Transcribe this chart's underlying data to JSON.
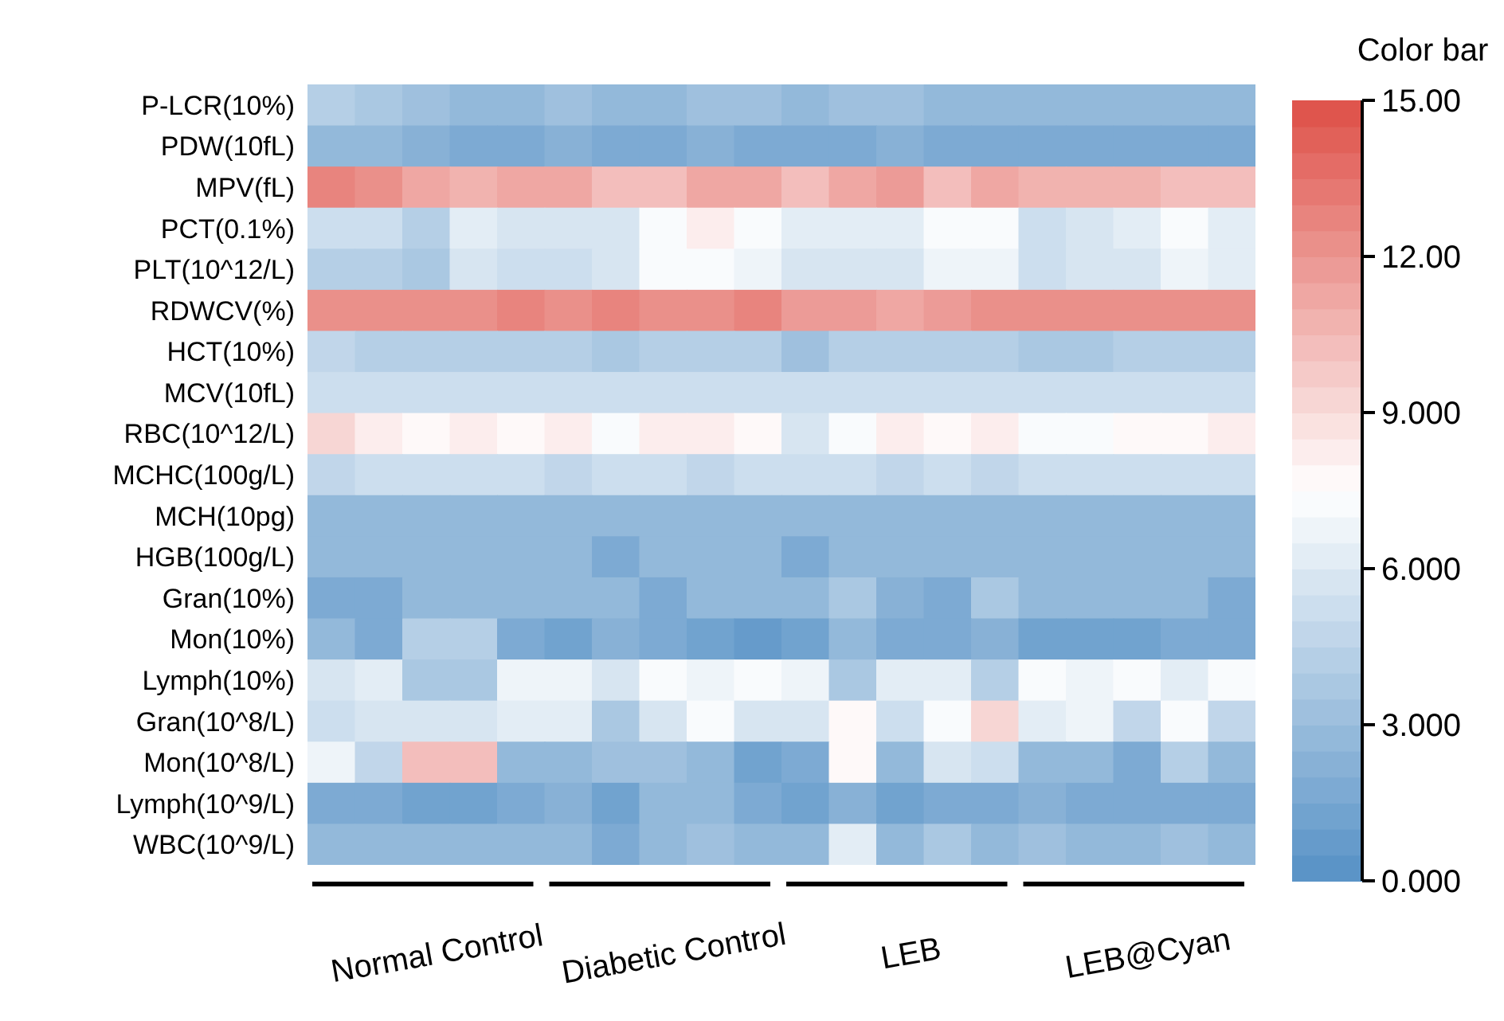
{
  "chart_data": {
    "type": "heatmap",
    "categories": [
      null,
      null,
      null,
      null,
      null,
      null,
      null,
      null,
      null,
      null,
      null,
      null,
      null,
      null,
      null,
      null,
      null,
      null,
      null,
      null
    ],
    "y_categories": [
      "P-LCR(10%)",
      "PDW(10fL)",
      "MPV(fL)",
      "PCT(0.1%)",
      "PLT(10^12/L)",
      "RDWCV(%)",
      "HCT(10%)",
      "MCV(10fL)",
      "RBC(10^12/L)",
      "MCHC(100g/L)",
      "MCH(10pg)",
      "HGB(100g/L)",
      "Gran(10%)",
      "Mon(10%)",
      "Lymph(10%)",
      "Gran(10^8/L)",
      "Mon(10^8/L)",
      "Lymph(10^9/L)",
      "WBC(10^9/L)"
    ],
    "cells": [
      [
        4.2,
        3.7,
        3.3,
        2.9,
        2.9,
        3.3,
        2.5,
        2.5,
        3.3,
        3.3,
        2.9,
        3.3,
        3.3,
        2.5,
        2.9,
        2.9,
        2.5,
        2.9,
        2.5,
        2.5
      ],
      [
        2.7,
        2.7,
        2.3,
        1.9,
        1.9,
        2.3,
        1.9,
        1.5,
        2.3,
        1.9,
        1.9,
        1.9,
        2.3,
        1.5,
        1.9,
        1.9,
        1.9,
        1.9,
        1.9,
        1.9
      ],
      [
        12.5,
        12,
        11,
        10.5,
        11,
        11,
        10,
        10,
        11,
        11,
        10,
        11,
        11.5,
        10,
        11,
        10.5,
        10.5,
        10.5,
        10,
        10
      ],
      [
        5,
        5,
        4.2,
        6.3,
        5.5,
        5.5,
        5.5,
        7.3,
        8.2,
        7.3,
        6.3,
        6.3,
        6.3,
        7.3,
        7.3,
        5,
        5.5,
        6.3,
        7.3,
        6.3
      ],
      [
        4.2,
        4.2,
        3.7,
        5.5,
        5,
        5,
        5.5,
        7.3,
        7.3,
        6.8,
        5.5,
        5.5,
        5.5,
        6.8,
        6.8,
        5,
        5.5,
        5.5,
        6.8,
        6.3
      ],
      [
        12,
        12,
        12,
        12,
        12.5,
        12,
        12.5,
        12,
        12,
        12.5,
        11.5,
        11.5,
        11,
        11.5,
        12,
        12,
        12,
        12,
        12,
        12
      ],
      [
        4.5,
        4.2,
        4.2,
        4.2,
        4.2,
        4.2,
        3.7,
        4.2,
        4.2,
        4.2,
        3.3,
        4.2,
        4.2,
        4.2,
        4.2,
        3.7,
        3.7,
        4.2,
        4.2,
        4.2
      ],
      [
        5,
        5,
        5,
        5,
        5,
        5,
        5,
        5,
        5,
        5,
        5,
        5,
        5,
        5,
        5,
        5,
        5,
        5,
        5,
        5
      ],
      [
        9,
        8.3,
        7.8,
        8.3,
        7.8,
        8.3,
        7.3,
        8.3,
        8.3,
        7.8,
        5.5,
        7.3,
        8.3,
        7.8,
        8.3,
        7.3,
        7.3,
        7.8,
        7.8,
        8.3
      ],
      [
        4.7,
        5,
        5,
        5,
        5,
        4.7,
        5,
        5,
        4.7,
        5,
        5,
        5,
        4.7,
        5,
        4.7,
        5,
        5,
        5,
        5,
        5
      ],
      [
        2.9,
        2.9,
        2.9,
        2.9,
        2.9,
        2.9,
        2.9,
        2.9,
        2.9,
        2.9,
        2.9,
        2.9,
        2.9,
        2.9,
        2.9,
        2.9,
        2.9,
        2.9,
        2.9,
        2.9
      ],
      [
        2.5,
        2.5,
        2.5,
        2.5,
        2.5,
        2.5,
        1.9,
        2.5,
        2.5,
        2.5,
        1.9,
        2.5,
        2.5,
        2.5,
        2.5,
        2.5,
        2.5,
        2.5,
        2.5,
        2.5
      ],
      [
        1.9,
        1.9,
        2.5,
        2.5,
        2.5,
        2.5,
        2.5,
        1.9,
        2.5,
        2.5,
        2.7,
        3.5,
        2.3,
        1.9,
        3.5,
        2.5,
        2.5,
        2.5,
        2.5,
        1.9
      ],
      [
        2.7,
        1.9,
        4.2,
        4.2,
        1.5,
        1,
        2.3,
        1.5,
        1,
        0.7,
        1,
        2.9,
        1.5,
        1.5,
        2.3,
        1,
        1,
        1,
        1.5,
        1.5
      ],
      [
        5.5,
        6.3,
        3.7,
        3.7,
        6.8,
        6.8,
        5.5,
        7.3,
        6.8,
        7.3,
        6.8,
        3.7,
        6.3,
        6.3,
        4.2,
        7.3,
        6.8,
        7.3,
        6.3,
        7.3
      ],
      [
        5,
        5.5,
        5.5,
        5.5,
        6.3,
        6.3,
        3.7,
        5.5,
        7.3,
        5.5,
        5.5,
        7.8,
        5,
        7.3,
        9,
        6.3,
        6.8,
        4.5,
        7.3,
        4.5
      ],
      [
        6.8,
        4.5,
        10,
        10,
        2.9,
        2.9,
        3.3,
        3.3,
        2.9,
        1,
        1.9,
        7.8,
        2.9,
        5.5,
        5,
        2.5,
        2.5,
        1.9,
        4.2,
        2.9
      ],
      [
        1.9,
        1.9,
        1,
        1,
        1.9,
        2.3,
        1,
        2.5,
        2.5,
        1.9,
        1,
        2.3,
        1.2,
        1.9,
        1.5,
        2.3,
        1.9,
        1.9,
        1.9,
        1.9
      ],
      [
        2.9,
        2.9,
        2.9,
        2.9,
        2.9,
        2.9,
        1.9,
        2.9,
        3.3,
        2.9,
        2.5,
        6.3,
        2.5,
        3.7,
        2.9,
        3.3,
        2.9,
        2.5,
        3.3,
        2.9
      ]
    ],
    "clabel": "Color bar",
    "clim": [
      0,
      15
    ],
    "cticks": [
      {
        "value": 0,
        "label": "0.000"
      },
      {
        "value": 3,
        "label": "3.000"
      },
      {
        "value": 6,
        "label": "6.000"
      },
      {
        "value": 9,
        "label": "9.000"
      },
      {
        "value": 12,
        "label": "12.00"
      },
      {
        "value": 15,
        "label": "15.00"
      }
    ],
    "annotations": [
      "Normal Control",
      "Diabetic Control",
      "LEB",
      "LEB@Cyan"
    ]
  }
}
